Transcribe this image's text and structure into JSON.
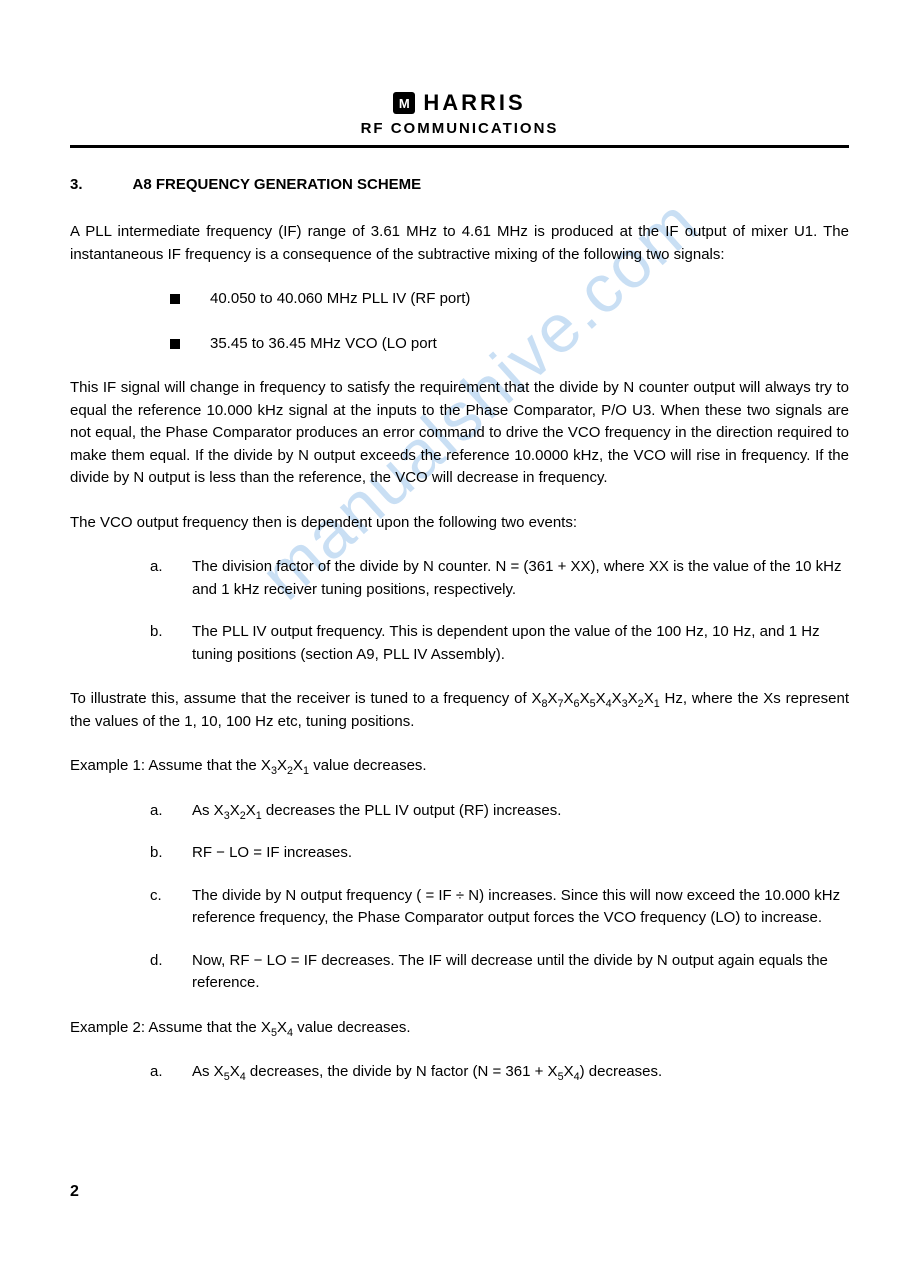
{
  "brand": {
    "icon_text": "M",
    "name": "HARRIS",
    "subhead": "RF COMMUNICATIONS"
  },
  "watermark": "manualshive.com",
  "section": {
    "num": "3.",
    "title": "A8 FREQUENCY GENERATION SCHEME"
  },
  "p1": "A PLL intermediate frequency (IF) range of 3.61 MHz to 4.61 MHz is produced at the IF output of mixer U1. The instantaneous IF frequency is a consequence of the subtractive mixing of the following two signals:",
  "bullets1": [
    "40.050 to 40.060 MHz PLL IV (RF port)",
    "35.45 to 36.45 MHz VCO (LO port"
  ],
  "p2": "This IF signal will change in frequency to satisfy the requirement that the divide by N counter output will always try to equal the reference 10.000 kHz signal at the inputs to the Phase Comparator, P/O U3. When these two signals are not equal, the Phase Comparator produces an error command to drive the VCO frequency in the direction required to make them equal. If the divide by N output exceeds the reference 10.0000 kHz, the VCO will rise in frequency. If the divide by N output is less than the reference, the VCO will decrease in frequency.",
  "p3": "The VCO output frequency then is dependent upon the following two events:",
  "list1": [
    {
      "m": "a.",
      "t": "The division factor of the divide by N counter.  N = (361 + XX), where XX is the value of the 10 kHz and 1 kHz receiver tuning positions, respectively."
    },
    {
      "m": "b.",
      "t": "The PLL IV output frequency.  This is dependent upon the value of the 100 Hz, 10 Hz, and 1 Hz tuning positions (section A9, PLL IV Assembly)."
    }
  ],
  "p4_pre": "To illustrate this, assume that the receiver is tuned to a frequency of X",
  "p4_sub": "8",
  "p4_mid1": "X",
  "p4_sub2": "7",
  "p4_mid2": "X",
  "p4_sub3": "6",
  "p4_mid3": "X",
  "p4_sub4": "5",
  "p4_mid4": "X",
  "p4_sub5": "4",
  "p4_mid5": "X",
  "p4_sub6": "3",
  "p4_mid6": "X",
  "p4_sub7": "2",
  "p4_mid7": "X",
  "p4_sub8": "1",
  "p4_post": " Hz, where the Xs represent the values of the 1, 10, 100 Hz etc, tuning positions.",
  "ex1_pre": "Example 1:  Assume that the X",
  "ex1_s1": "3",
  "ex1_m1": "X",
  "ex1_s2": "2",
  "ex1_m2": "X",
  "ex1_s3": "1",
  "ex1_post": " value decreases.",
  "list2": {
    "a_pre": "As X",
    "a_s1": "3",
    "a_m1": "X",
    "a_s2": "2",
    "a_m2": "X",
    "a_s3": "1",
    "a_post": " decreases the PLL IV output (RF) increases.",
    "b": "RF − LO = IF increases.",
    "c": "The divide by N output frequency ( = IF ÷ N) increases. Since this will now exceed the 10.000 kHz reference frequency, the Phase Comparator output forces the VCO frequency (LO) to increase.",
    "d": "Now, RF − LO = IF decreases.  The IF will decrease until the divide by N output again equals the reference."
  },
  "ex2_pre": "Example 2:  Assume that the X",
  "ex2_s1": "5",
  "ex2_m1": "X",
  "ex2_s2": "4",
  "ex2_post": " value decreases.",
  "list3": {
    "a_pre": "As X",
    "a_s1": "5",
    "a_m1": "X",
    "a_s2": "4",
    "a_mid": " decreases, the divide by N factor (N = 361 + X",
    "a_s3": "5",
    "a_m2": "X",
    "a_s4": "4",
    "a_post": ") decreases."
  },
  "markers": {
    "a": "a.",
    "b": "b.",
    "c": "c.",
    "d": "d."
  },
  "page_number": "2"
}
